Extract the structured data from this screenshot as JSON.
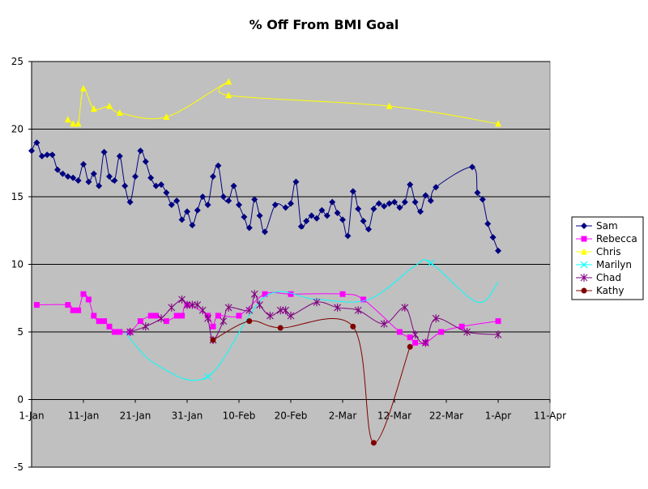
{
  "chart_data": {
    "type": "line",
    "title": "% Off From BMI Goal",
    "xlabel": "",
    "ylabel": "",
    "ylim": [
      -5,
      25
    ],
    "yticks": [
      -5,
      0,
      5,
      10,
      15,
      20,
      25
    ],
    "xlim": [
      "1-Jan",
      "11-Apr"
    ],
    "xticks": [
      "1-Jan",
      "11-Jan",
      "21-Jan",
      "31-Jan",
      "10-Feb",
      "20-Feb",
      "2-Mar",
      "12-Mar",
      "22-Mar",
      "1-Apr",
      "11-Apr"
    ],
    "grid": "horizontal",
    "plot_background": "#c0c0c0",
    "legend": "right",
    "series": [
      {
        "name": "Sam",
        "color": "#000080",
        "marker": "diamond",
        "x": [
          "1-Jan",
          "2-Jan",
          "3-Jan",
          "4-Jan",
          "5-Jan",
          "6-Jan",
          "7-Jan",
          "8-Jan",
          "9-Jan",
          "10-Jan",
          "11-Jan",
          "12-Jan",
          "13-Jan",
          "14-Jan",
          "15-Jan",
          "16-Jan",
          "17-Jan",
          "18-Jan",
          "19-Jan",
          "20-Jan",
          "21-Jan",
          "22-Jan",
          "23-Jan",
          "24-Jan",
          "25-Jan",
          "26-Jan",
          "27-Jan",
          "28-Jan",
          "29-Jan",
          "30-Jan",
          "31-Jan",
          "1-Feb",
          "2-Feb",
          "3-Feb",
          "4-Feb",
          "5-Feb",
          "6-Feb",
          "7-Feb",
          "8-Feb",
          "9-Feb",
          "10-Feb",
          "11-Feb",
          "12-Feb",
          "13-Feb",
          "14-Feb",
          "15-Feb",
          "17-Feb",
          "19-Feb",
          "20-Feb",
          "21-Feb",
          "22-Feb",
          "23-Feb",
          "24-Feb",
          "25-Feb",
          "26-Feb",
          "27-Feb",
          "28-Feb",
          "1-Mar",
          "2-Mar",
          "3-Mar",
          "4-Mar",
          "5-Mar",
          "6-Mar",
          "7-Mar",
          "8-Mar",
          "9-Mar",
          "10-Mar",
          "11-Mar",
          "12-Mar",
          "13-Mar",
          "14-Mar",
          "15-Mar",
          "16-Mar",
          "17-Mar",
          "18-Mar",
          "19-Mar",
          "20-Mar",
          "27-Mar",
          "28-Mar",
          "29-Mar",
          "30-Mar",
          "31-Mar",
          "1-Apr"
        ],
        "values": [
          18.4,
          19.0,
          18.0,
          18.1,
          18.1,
          17.0,
          16.7,
          16.5,
          16.4,
          16.2,
          17.4,
          16.1,
          16.7,
          15.8,
          18.3,
          16.5,
          16.2,
          18.0,
          15.8,
          14.6,
          16.5,
          18.4,
          17.6,
          16.4,
          15.8,
          15.9,
          15.3,
          14.4,
          14.7,
          13.3,
          13.9,
          12.9,
          14.0,
          15.0,
          14.4,
          16.5,
          17.3,
          15.0,
          14.7,
          15.8,
          14.4,
          13.5,
          12.7,
          14.8,
          13.6,
          12.4,
          14.4,
          14.2,
          14.5,
          16.1,
          12.8,
          13.2,
          13.6,
          13.4,
          14.0,
          13.6,
          14.6,
          13.8,
          13.3,
          12.1,
          15.4,
          14.1,
          13.2,
          12.6,
          14.1,
          14.5,
          14.3,
          14.5,
          14.6,
          14.2,
          14.6,
          15.9,
          14.6,
          13.9,
          15.1,
          14.7,
          15.7,
          17.2,
          15.3,
          14.8,
          13.0,
          12.0,
          11.0
        ]
      },
      {
        "name": "Rebecca",
        "color": "#ff00ff",
        "marker": "square",
        "x": [
          "2-Jan",
          "8-Jan",
          "9-Jan",
          "10-Jan",
          "11-Jan",
          "12-Jan",
          "13-Jan",
          "14-Jan",
          "15-Jan",
          "16-Jan",
          "17-Jan",
          "18-Jan",
          "20-Jan",
          "22-Jan",
          "24-Jan",
          "25-Jan",
          "27-Jan",
          "29-Jan",
          "30-Jan",
          "31-Jan",
          "4-Feb",
          "5-Feb",
          "6-Feb",
          "10-Feb",
          "15-Feb",
          "20-Feb",
          "2-Mar",
          "6-Mar",
          "13-Mar",
          "15-Mar",
          "16-Mar",
          "18-Mar",
          "21-Mar",
          "25-Mar",
          "1-Apr"
        ],
        "values": [
          7.0,
          7.0,
          6.6,
          6.6,
          7.8,
          7.4,
          6.2,
          5.8,
          5.8,
          5.4,
          5.0,
          5.0,
          5.0,
          5.8,
          6.2,
          6.2,
          5.8,
          6.2,
          6.2,
          7.0,
          6.2,
          5.4,
          6.2,
          6.2,
          7.8,
          7.8,
          7.8,
          7.4,
          5.0,
          4.6,
          4.2,
          4.2,
          5.0,
          5.4,
          5.8
        ]
      },
      {
        "name": "Chris",
        "color": "#ffff00",
        "marker": "triangle",
        "x": [
          "8-Jan",
          "9-Jan",
          "10-Jan",
          "11-Jan",
          "13-Jan",
          "16-Jan",
          "18-Jan",
          "27-Jan",
          "8-Feb",
          "8-Feb",
          "11-Mar",
          "1-Apr"
        ],
        "values": [
          20.7,
          20.4,
          20.4,
          23.0,
          21.5,
          21.7,
          21.2,
          20.9,
          23.5,
          22.5,
          21.7,
          20.4
        ]
      },
      {
        "name": "Marilyn",
        "color": "#00ffff",
        "marker": "x",
        "x": [
          "19-Jan",
          "25-Jan",
          "4-Feb",
          "15-Feb",
          "25-Feb",
          "7-Mar",
          "16-Mar",
          "19-Mar",
          "28-Mar",
          "1-Apr"
        ],
        "values": [
          5.0,
          2.6,
          1.7,
          7.6,
          7.4,
          7.4,
          9.9,
          10.1,
          7.2,
          8.7
        ],
        "marker_values": [
          null,
          null,
          1.7,
          null,
          null,
          null,
          null,
          10.1,
          null,
          null
        ]
      },
      {
        "name": "Chad",
        "color": "#800080",
        "marker": "star",
        "x": [
          "20-Jan",
          "23-Jan",
          "26-Jan",
          "28-Jan",
          "30-Jan",
          "31-Jan",
          "1-Feb",
          "2-Feb",
          "3-Feb",
          "4-Feb",
          "5-Feb",
          "7-Feb",
          "8-Feb",
          "12-Feb",
          "13-Feb",
          "14-Feb",
          "16-Feb",
          "18-Feb",
          "19-Feb",
          "20-Feb",
          "25-Feb",
          "1-Mar",
          "5-Mar",
          "10-Mar",
          "14-Mar",
          "16-Mar",
          "18-Mar",
          "20-Mar",
          "26-Mar",
          "1-Apr"
        ],
        "values": [
          5.0,
          5.4,
          6.0,
          6.8,
          7.4,
          7.0,
          7.0,
          7.0,
          6.6,
          6.0,
          4.4,
          5.8,
          6.8,
          6.6,
          7.8,
          7.0,
          6.2,
          6.6,
          6.6,
          6.2,
          7.2,
          6.8,
          6.6,
          5.6,
          6.8,
          4.8,
          4.2,
          6.0,
          5.0,
          4.8
        ]
      },
      {
        "name": "Kathy",
        "color": "#800000",
        "marker": "circle",
        "x": [
          "5-Feb",
          "12-Feb",
          "18-Feb",
          "4-Mar",
          "8-Mar",
          "15-Mar"
        ],
        "values": [
          4.4,
          5.8,
          5.3,
          5.4,
          -3.2,
          3.9
        ]
      }
    ]
  }
}
